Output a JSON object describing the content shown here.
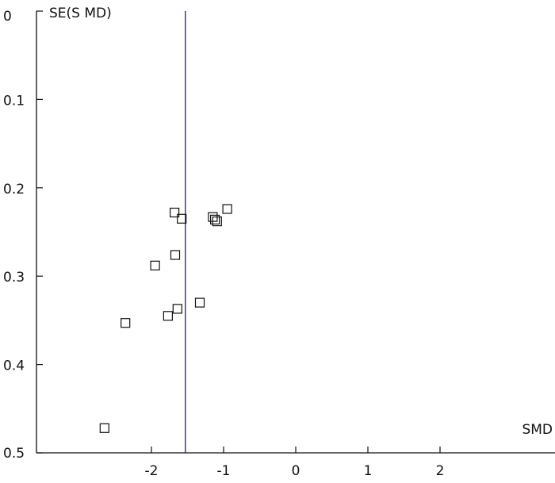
{
  "chart_data": {
    "type": "scatter",
    "xlabel": "SMD",
    "ylabel": "SE(S MD)",
    "xlim": [
      -3.5,
      3.6
    ],
    "ylim": [
      0,
      0.5
    ],
    "y_inverted": true,
    "x_ticks": [
      {
        "value": -2,
        "label": "-2"
      },
      {
        "value": -1,
        "label": "-1"
      },
      {
        "value": 0,
        "label": "0"
      },
      {
        "value": 1,
        "label": "1"
      },
      {
        "value": 2,
        "label": "2"
      }
    ],
    "y_ticks": [
      {
        "value": 0,
        "label": "0"
      },
      {
        "value": 0.1,
        "label": "0.1"
      },
      {
        "value": 0.2,
        "label": "0.2"
      },
      {
        "value": 0.3,
        "label": "0.3"
      },
      {
        "value": 0.4,
        "label": "0.4"
      },
      {
        "value": 0.5,
        "label": "0.5"
      }
    ],
    "reference_line_x": -1.53,
    "points": [
      {
        "x": -1.68,
        "y": 0.228
      },
      {
        "x": -1.58,
        "y": 0.235
      },
      {
        "x": -1.15,
        "y": 0.233
      },
      {
        "x": -1.12,
        "y": 0.236
      },
      {
        "x": -1.09,
        "y": 0.238
      },
      {
        "x": -0.95,
        "y": 0.224
      },
      {
        "x": -1.67,
        "y": 0.276
      },
      {
        "x": -1.95,
        "y": 0.288
      },
      {
        "x": -1.33,
        "y": 0.33
      },
      {
        "x": -1.64,
        "y": 0.337
      },
      {
        "x": -1.77,
        "y": 0.345
      },
      {
        "x": -2.36,
        "y": 0.353
      },
      {
        "x": -2.65,
        "y": 0.472
      }
    ],
    "grid": false,
    "marker": "open-square",
    "colors": {
      "axis": "#111111",
      "marker": "#111111",
      "reference_line": "#1f1a8c"
    }
  }
}
